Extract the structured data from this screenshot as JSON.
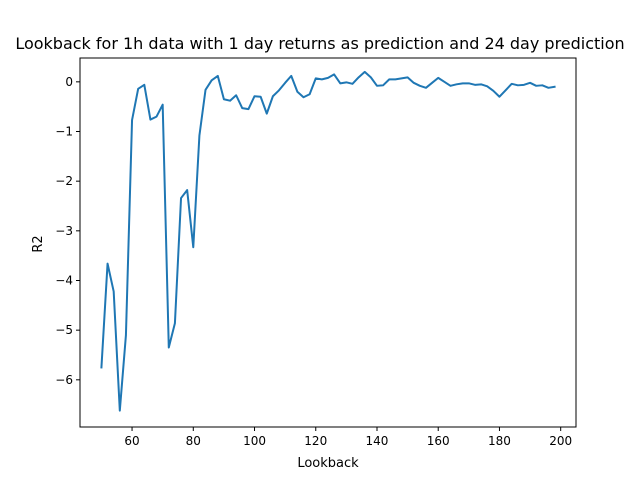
{
  "chart_data": {
    "type": "line",
    "title": "Lookback for 1h data with 1 day returns as prediction and 24 day prediction",
    "xlabel": "Lookback",
    "ylabel": "R2",
    "xlim": [
      43,
      205
    ],
    "ylim": [
      -6.95,
      0.48
    ],
    "xticks": [
      60,
      80,
      100,
      120,
      140,
      160,
      180,
      200
    ],
    "yticks": [
      -6,
      -5,
      -4,
      -3,
      -2,
      -1,
      0
    ],
    "grid": false,
    "line_color": "#1f77b4",
    "series": [
      {
        "x": [
          50,
          52,
          54,
          56,
          58,
          60,
          62,
          64,
          66,
          68,
          70,
          72,
          74,
          76,
          78,
          80,
          82,
          84,
          86,
          88,
          90,
          92,
          94,
          96,
          98,
          100,
          102,
          104,
          106,
          108,
          110,
          112,
          114,
          116,
          118,
          120,
          122,
          124,
          126,
          128,
          130,
          132,
          134,
          136,
          138,
          140,
          142,
          144,
          146,
          148,
          150,
          152,
          154,
          156,
          158,
          160,
          162,
          164,
          166,
          168,
          170,
          172,
          174,
          176,
          178,
          180,
          182,
          184,
          186,
          188,
          190,
          192,
          194,
          196,
          198
        ],
        "values": [
          -5.75,
          -3.66,
          -4.22,
          -6.62,
          -5.1,
          -0.77,
          -0.14,
          -0.06,
          -0.76,
          -0.7,
          -0.46,
          -5.35,
          -4.86,
          -2.34,
          -2.18,
          -3.33,
          -1.08,
          -0.16,
          0.03,
          0.12,
          -0.35,
          -0.38,
          -0.27,
          -0.53,
          -0.55,
          -0.29,
          -0.3,
          -0.64,
          -0.29,
          -0.17,
          -0.02,
          0.12,
          -0.2,
          -0.31,
          -0.25,
          0.07,
          0.05,
          0.08,
          0.15,
          -0.03,
          -0.01,
          -0.04,
          0.09,
          0.2,
          0.09,
          -0.08,
          -0.07,
          0.05,
          0.05,
          0.07,
          0.09,
          -0.02,
          -0.08,
          -0.12,
          -0.02,
          0.08,
          0.0,
          -0.08,
          -0.05,
          -0.03,
          -0.03,
          -0.06,
          -0.05,
          -0.09,
          -0.18,
          -0.3,
          -0.17,
          -0.04,
          -0.07,
          -0.06,
          -0.02,
          -0.08,
          -0.07,
          -0.12,
          -0.1
        ]
      }
    ]
  }
}
